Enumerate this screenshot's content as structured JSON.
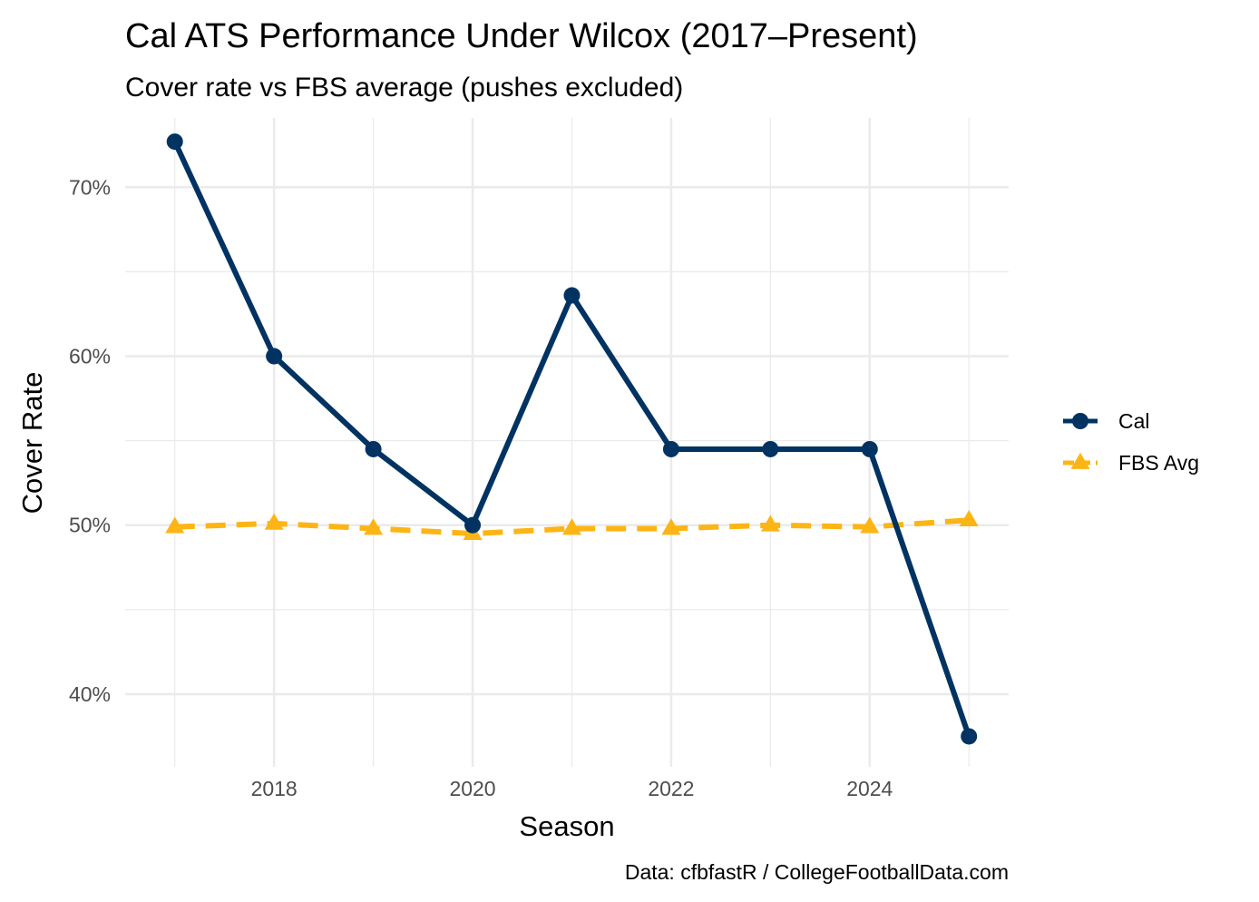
{
  "chart_data": {
    "type": "line",
    "title": "Cal ATS Performance Under Wilcox (2017–Present)",
    "subtitle": "Cover rate vs FBS average (pushes excluded)",
    "xlabel": "Season",
    "ylabel": "Cover Rate",
    "caption": "Data: cfbfastR / CollegeFootballData.com",
    "x": [
      2017,
      2018,
      2019,
      2020,
      2021,
      2022,
      2023,
      2024,
      2025
    ],
    "xlim": [
      2016.5,
      2025.4
    ],
    "ylim": [
      0.357,
      0.741
    ],
    "x_ticks": [
      2018,
      2020,
      2022,
      2024
    ],
    "x_tick_labels": [
      "2018",
      "2020",
      "2022",
      "2024"
    ],
    "x_minor_ticks": [
      2017,
      2019,
      2021,
      2023,
      2025
    ],
    "y_ticks": [
      0.4,
      0.5,
      0.6,
      0.7
    ],
    "y_tick_labels": [
      "40%",
      "50%",
      "60%",
      "70%"
    ],
    "y_minor_ticks": [
      0.45,
      0.55,
      0.65
    ],
    "grid": true,
    "legend_position": "right",
    "series": [
      {
        "name": "Cal",
        "color": "#003262",
        "linetype": "solid",
        "marker": "circle",
        "values": [
          0.727,
          0.6,
          0.545,
          0.5,
          0.636,
          0.545,
          0.545,
          0.545,
          0.375
        ]
      },
      {
        "name": "FBS Avg",
        "color": "#FDB515",
        "linetype": "dashed",
        "marker": "triangle",
        "values": [
          0.499,
          0.501,
          0.498,
          0.495,
          0.498,
          0.498,
          0.5,
          0.499,
          0.503
        ]
      }
    ]
  }
}
